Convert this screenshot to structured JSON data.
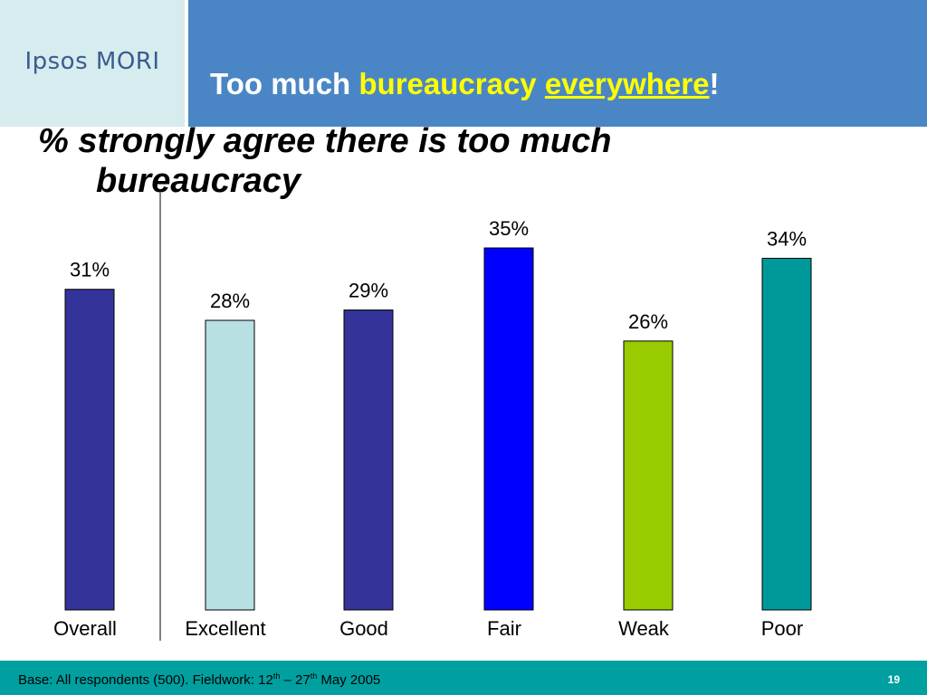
{
  "header": {
    "logo_text": "Ipsos MORI",
    "title_part1": "Too much ",
    "title_part2": "bureaucracy",
    "title_part3": " ",
    "title_part4": "everywhere",
    "title_part5": "!"
  },
  "subtitle": {
    "line1": "% strongly agree there is too much",
    "line2": "bureaucracy"
  },
  "chart_data": {
    "type": "bar",
    "categories": [
      "Overall",
      "Excellent",
      "Good",
      "Fair",
      "Weak",
      "Poor"
    ],
    "values": [
      31,
      28,
      29,
      35,
      26,
      34
    ],
    "value_labels": [
      "31%",
      "28%",
      "29%",
      "35%",
      "26%",
      "34%"
    ],
    "colors": [
      "#333399",
      "#b8dfe2",
      "#333399",
      "#0000ff",
      "#99cc00",
      "#009999"
    ],
    "title": "",
    "xlabel": "",
    "ylabel": "",
    "ylim": [
      0,
      35
    ],
    "grid": false,
    "separator_after_category": "Overall"
  },
  "footer": {
    "base_prefix": "Base: All respondents (500). Fieldwork: 12",
    "sup1": "th",
    "mid": " – 27",
    "sup2": "th",
    "base_suffix": " May 2005",
    "page_number": "19"
  }
}
